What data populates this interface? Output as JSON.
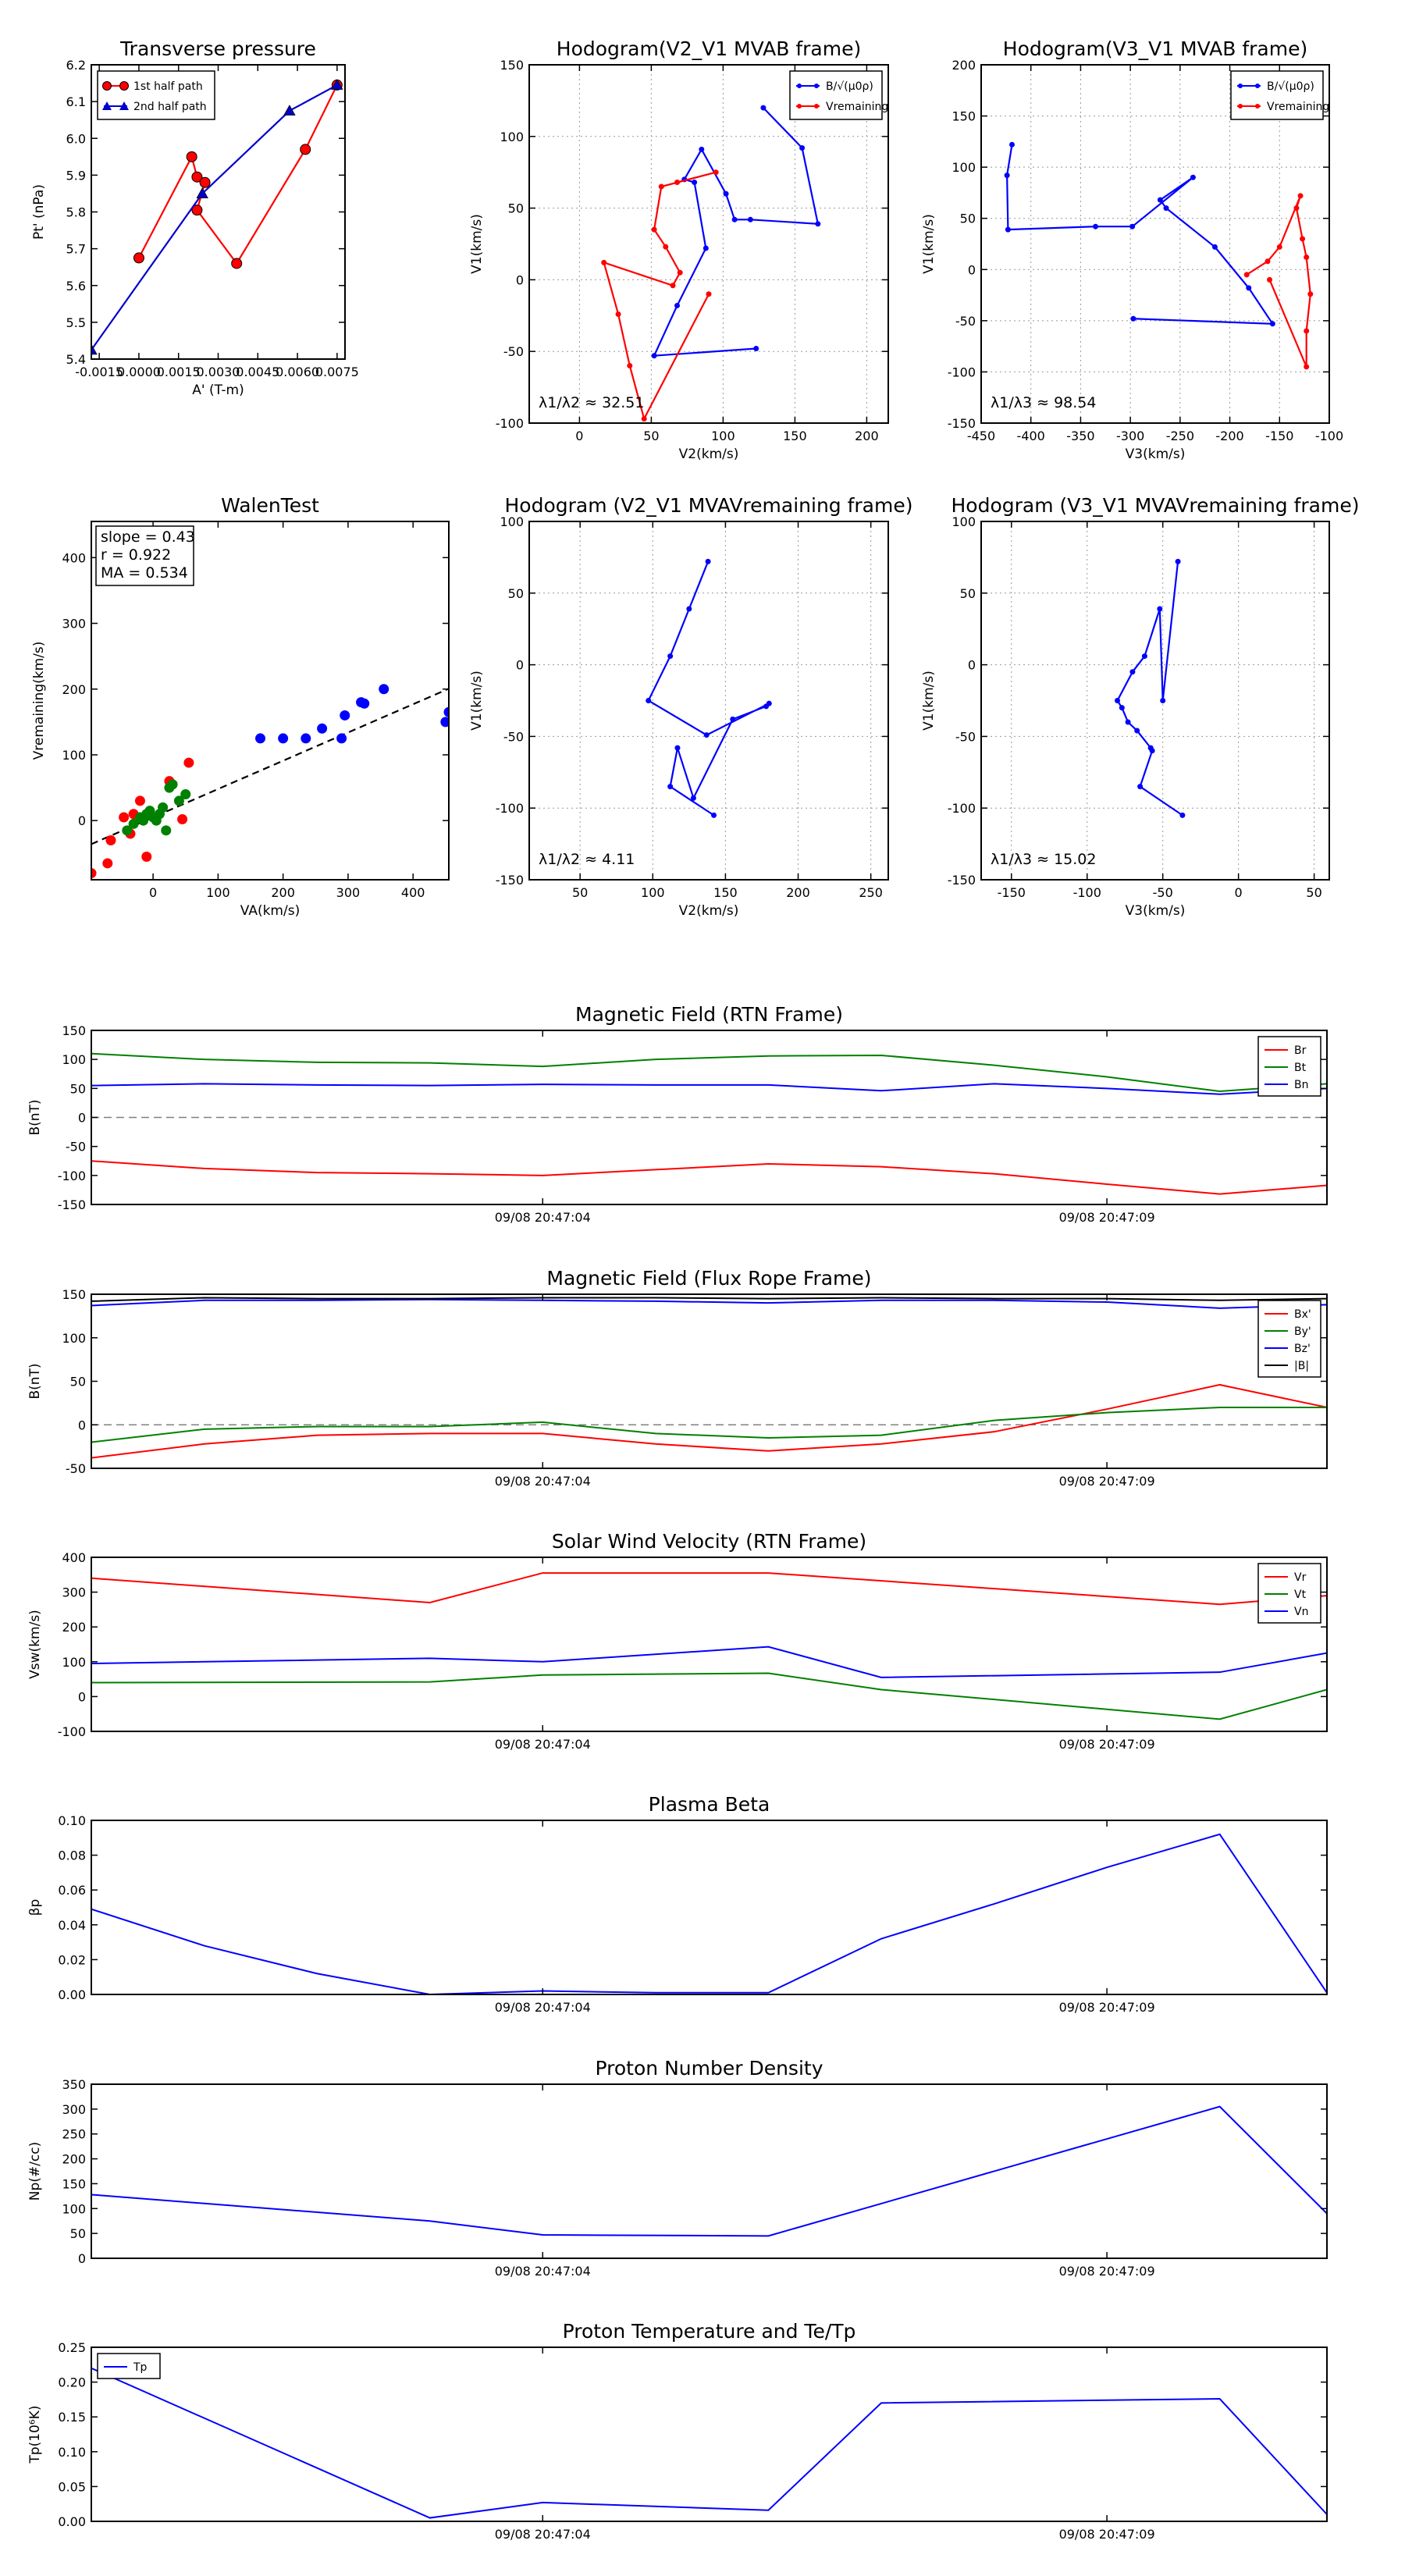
{
  "chart_data": [
    {
      "id": "tp",
      "type": "line",
      "title": "Transverse pressure",
      "xlabel": "A' (T-m)",
      "ylabel": "Pt' (nPa)",
      "xlim": [
        -0.0018,
        0.0078
      ],
      "ylim": [
        5.4,
        6.2
      ],
      "xticks": [
        -0.0015,
        0.0,
        0.0015,
        0.003,
        0.0045,
        0.006,
        0.0075
      ],
      "xtick_labels": [
        "-0.0015",
        "0.0000",
        "0.0015",
        "0.0030",
        "0.0045",
        "0.0060",
        "0.0075"
      ],
      "yticks": [
        5.4,
        5.5,
        5.6,
        5.7,
        5.8,
        5.9,
        6.0,
        6.1,
        6.2
      ],
      "ytick_labels": [
        "5.4",
        "5.5",
        "5.6",
        "5.7",
        "5.8",
        "5.9",
        "6.0",
        "6.1",
        "6.2"
      ],
      "legend_position": "top-left",
      "series": [
        {
          "name": "1st half path",
          "color": "#ff0000",
          "marker": "circle",
          "x": [
            0.0,
            0.002,
            0.0022,
            0.0025,
            0.0022,
            0.0037,
            0.0063,
            0.0075
          ],
          "y": [
            5.675,
            5.95,
            5.895,
            5.88,
            5.805,
            5.66,
            5.97,
            6.145
          ]
        },
        {
          "name": "2nd half path",
          "color": "#0000cc",
          "marker": "triangle",
          "x": [
            0.0075,
            0.0057,
            0.0024,
            -0.0018
          ],
          "y": [
            6.145,
            6.075,
            5.85,
            5.425
          ]
        }
      ]
    },
    {
      "id": "h1",
      "type": "line",
      "title": "Hodogram(V2_V1 MVAB frame)",
      "xlabel": "V2(km/s)",
      "ylabel": "V1(km/s)",
      "xlim": [
        -35,
        215
      ],
      "ylim": [
        -100,
        150
      ],
      "xticks": [
        0,
        50,
        100,
        150,
        200
      ],
      "yticks": [
        -100,
        -50,
        0,
        50,
        100,
        150
      ],
      "annotation": "λ1/λ2 ≈ 32.51",
      "legend_position": "top-right",
      "series": [
        {
          "name": "B/√(μ0ρ)",
          "color": "#0000ff",
          "x": [
            123,
            52,
            68,
            88,
            80,
            73,
            85,
            102,
            108,
            119,
            166,
            155,
            128
          ],
          "y": [
            -48,
            -53,
            -18,
            22,
            68,
            70,
            91,
            60,
            42,
            42,
            39,
            92,
            120
          ]
        },
        {
          "name": "Vremaining",
          "color": "#ff0000",
          "x": [
            90,
            45,
            35,
            27,
            17,
            65,
            70,
            60,
            52,
            57,
            95,
            68
          ],
          "y": [
            -10,
            -97,
            -60,
            -24,
            12,
            -4,
            5,
            23,
            35,
            65,
            75,
            68
          ]
        }
      ]
    },
    {
      "id": "h2",
      "type": "line",
      "title": "Hodogram(V3_V1 MVAB frame)",
      "xlabel": "V3(km/s)",
      "ylabel": "V1(km/s)",
      "xlim": [
        -450,
        -100
      ],
      "ylim": [
        -150,
        200
      ],
      "xticks": [
        -450,
        -400,
        -350,
        -300,
        -250,
        -200,
        -150,
        -100
      ],
      "yticks": [
        -150,
        -100,
        -50,
        0,
        50,
        100,
        150,
        200
      ],
      "annotation": "λ1/λ3 ≈ 98.54",
      "legend_position": "top-right",
      "series": [
        {
          "name": "B/√(μ0ρ)",
          "color": "#0000ff",
          "x": [
            -297,
            -157,
            -181,
            -215,
            -264,
            -270,
            -237,
            -298,
            -335,
            -423,
            -424,
            -419
          ],
          "y": [
            -48,
            -53,
            -18,
            22,
            60,
            68,
            90,
            42,
            42,
            39,
            92,
            122
          ]
        },
        {
          "name": "Vremaining",
          "color": "#ff0000",
          "x": [
            -160,
            -123,
            -123,
            -119,
            -123,
            -127,
            -133,
            -129,
            -150,
            -162,
            -183
          ],
          "y": [
            -10,
            -95,
            -60,
            -24,
            12,
            30,
            60,
            72,
            22,
            8,
            -5
          ]
        }
      ]
    },
    {
      "id": "walen",
      "type": "scatter",
      "title": "WalenTest",
      "xlabel": "VA(km/s)",
      "ylabel": "Vremaining(km/s)",
      "xlim": [
        -95,
        455
      ],
      "ylim": [
        -90,
        455
      ],
      "xticks": [
        0,
        100,
        200,
        300,
        400
      ],
      "yticks": [
        0,
        100,
        200,
        300,
        400
      ],
      "annotations": [
        "slope = 0.43",
        "r = 0.922",
        "MA = 0.534"
      ],
      "fit": {
        "slope": 0.43,
        "intercept": 5
      },
      "series": [
        {
          "color": "#ff0000",
          "x": [
            -95,
            -70,
            -65,
            -45,
            -35,
            -30,
            -20,
            -10,
            25,
            55,
            45
          ],
          "y": [
            -80,
            -65,
            -30,
            5,
            -20,
            10,
            30,
            -55,
            60,
            88,
            2
          ]
        },
        {
          "color": "#008000",
          "x": [
            -40,
            -30,
            -20,
            -15,
            -10,
            -5,
            0,
            5,
            10,
            15,
            20,
            25,
            30,
            40,
            50
          ],
          "y": [
            -15,
            -5,
            5,
            0,
            10,
            15,
            5,
            0,
            10,
            20,
            -15,
            50,
            55,
            30,
            40
          ]
        },
        {
          "color": "#0000ff",
          "x": [
            165,
            200,
            235,
            260,
            290,
            295,
            320,
            325,
            355,
            450,
            455
          ],
          "y": [
            125,
            125,
            125,
            140,
            125,
            160,
            180,
            178,
            200,
            150,
            165
          ]
        }
      ]
    },
    {
      "id": "h3",
      "type": "line",
      "title": "Hodogram (V2_V1 MVAVremaining frame)",
      "xlabel": "V2(km/s)",
      "ylabel": "V1(km/s)",
      "xlim": [
        15,
        262
      ],
      "ylim": [
        -150,
        100
      ],
      "xticks": [
        50,
        100,
        150,
        200,
        250
      ],
      "yticks": [
        -150,
        -100,
        -50,
        0,
        50,
        100
      ],
      "annotation": "λ1/λ2 ≈ 4.11",
      "series": [
        {
          "color": "#0000ff",
          "x": [
            142,
            112,
            117,
            128,
            155,
            178,
            180,
            137,
            97,
            112,
            125,
            138
          ],
          "y": [
            -105,
            -85,
            -58,
            -93,
            -38,
            -29,
            -27,
            -49,
            -25,
            6,
            39,
            72
          ]
        }
      ]
    },
    {
      "id": "h4",
      "type": "line",
      "title": "Hodogram (V3_V1 MVAVremaining frame)",
      "xlabel": "V3(km/s)",
      "ylabel": "V1(km/s)",
      "xlim": [
        -170,
        60
      ],
      "ylim": [
        -150,
        100
      ],
      "xticks": [
        -150,
        -100,
        -50,
        0,
        50
      ],
      "yticks": [
        -150,
        -100,
        -50,
        0,
        50,
        100
      ],
      "annotation": "λ1/λ3 ≈ 15.02",
      "series": [
        {
          "color": "#0000ff",
          "x": [
            -37,
            -65,
            -57,
            -58,
            -67,
            -73,
            -77,
            -80,
            -70,
            -62,
            -52,
            -50,
            -40
          ],
          "y": [
            -105,
            -85,
            -60,
            -58,
            -46,
            -40,
            -30,
            -25,
            -5,
            6,
            39,
            -25,
            72
          ]
        }
      ]
    },
    {
      "id": "ts1",
      "type": "line",
      "title": "Magnetic Field (RTN Frame)",
      "ylabel": "B(nT)",
      "xlim": [
        0,
        10.95
      ],
      "ylim": [
        -150,
        150
      ],
      "yticks": [
        -150,
        -100,
        -50,
        0,
        50,
        100,
        150
      ],
      "xticks": [
        4,
        9
      ],
      "xtick_labels": [
        "09/08 20:47:04",
        "09/08 20:47:09"
      ],
      "zero_line": true,
      "legend_position": "top-right",
      "series": [
        {
          "name": "Br",
          "color": "#ff0000",
          "x": [
            0,
            1,
            2,
            3,
            4,
            5,
            6,
            7,
            8,
            9,
            10,
            10.95
          ],
          "y": [
            -75,
            -88,
            -95,
            -97,
            -100,
            -90,
            -80,
            -85,
            -97,
            -115,
            -132,
            -117
          ]
        },
        {
          "name": "Bt",
          "color": "#008000",
          "x": [
            0,
            1,
            2,
            3,
            4,
            5,
            6,
            7,
            8,
            9,
            10,
            10.95
          ],
          "y": [
            110,
            100,
            95,
            94,
            88,
            100,
            106,
            107,
            90,
            70,
            45,
            58
          ]
        },
        {
          "name": "Bn",
          "color": "#0000ff",
          "x": [
            0,
            1,
            2,
            3,
            4,
            5,
            6,
            7,
            8,
            9,
            10,
            10.95
          ],
          "y": [
            55,
            58,
            56,
            55,
            57,
            56,
            56,
            46,
            58,
            50,
            40,
            50
          ]
        }
      ]
    },
    {
      "id": "ts2",
      "type": "line",
      "title": "Magnetic Field (Flux Rope Frame)",
      "ylabel": "B(nT)",
      "xlim": [
        0,
        10.95
      ],
      "ylim": [
        -50,
        150
      ],
      "yticks": [
        -50,
        0,
        50,
        100,
        150
      ],
      "xticks": [
        4,
        9
      ],
      "xtick_labels": [
        "09/08 20:47:04",
        "09/08 20:47:09"
      ],
      "zero_line": true,
      "legend_position": "top-right",
      "series": [
        {
          "name": "Bx'",
          "color": "#ff0000",
          "x": [
            0,
            1,
            2,
            3,
            4,
            5,
            6,
            7,
            8,
            9,
            10,
            10.95
          ],
          "y": [
            -38,
            -22,
            -12,
            -10,
            -10,
            -22,
            -30,
            -22,
            -8,
            18,
            46,
            20
          ]
        },
        {
          "name": "By'",
          "color": "#008000",
          "x": [
            0,
            1,
            2,
            3,
            4,
            5,
            6,
            7,
            8,
            9,
            10,
            10.95
          ],
          "y": [
            -20,
            -5,
            -2,
            -2,
            3,
            -10,
            -15,
            -12,
            5,
            14,
            20,
            20
          ]
        },
        {
          "name": "Bz'",
          "color": "#0000ff",
          "x": [
            0,
            1,
            2,
            3,
            4,
            5,
            6,
            7,
            8,
            9,
            10,
            10.95
          ],
          "y": [
            137,
            143,
            143,
            144,
            143,
            142,
            140,
            143,
            143,
            141,
            134,
            138
          ]
        },
        {
          "name": "|B|",
          "color": "#000000",
          "x": [
            0,
            1,
            2,
            3,
            4,
            5,
            6,
            7,
            8,
            9,
            10,
            10.95
          ],
          "y": [
            142,
            146,
            145,
            145,
            146,
            146,
            145,
            146,
            145,
            145,
            143,
            145
          ]
        }
      ]
    },
    {
      "id": "ts3",
      "type": "line",
      "title": "Solar Wind Velocity (RTN Frame)",
      "ylabel": "Vsw(km/s)",
      "xlim": [
        0,
        10.95
      ],
      "ylim": [
        -100,
        400
      ],
      "yticks": [
        -100,
        0,
        100,
        200,
        300,
        400
      ],
      "xticks": [
        4,
        9
      ],
      "xtick_labels": [
        "09/08 20:47:04",
        "09/08 20:47:09"
      ],
      "legend_position": "top-right",
      "series": [
        {
          "name": "Vr",
          "color": "#ff0000",
          "x": [
            0,
            3,
            4,
            6,
            10,
            10.95
          ],
          "y": [
            340,
            270,
            355,
            355,
            265,
            290
          ]
        },
        {
          "name": "Vt",
          "color": "#008000",
          "x": [
            0,
            3,
            4,
            6,
            7,
            10,
            10.95
          ],
          "y": [
            40,
            42,
            62,
            67,
            20,
            -65,
            20
          ]
        },
        {
          "name": "Vn",
          "color": "#0000ff",
          "x": [
            0,
            3,
            4,
            6,
            7,
            10,
            10.95
          ],
          "y": [
            95,
            110,
            100,
            143,
            55,
            70,
            125
          ]
        }
      ]
    },
    {
      "id": "ts4",
      "type": "line",
      "title": "Plasma Beta",
      "ylabel": "βp",
      "xlim": [
        0,
        10.95
      ],
      "ylim": [
        0,
        0.1
      ],
      "yticks": [
        0,
        0.02,
        0.04,
        0.06,
        0.08,
        0.1
      ],
      "ytick_labels": [
        "0.00",
        "0.02",
        "0.04",
        "0.06",
        "0.08",
        "0.10"
      ],
      "xticks": [
        4,
        9
      ],
      "xtick_labels": [
        "09/08 20:47:04",
        "09/08 20:47:09"
      ],
      "series": [
        {
          "color": "#0000ff",
          "x": [
            0,
            1,
            2,
            3,
            4,
            5,
            6,
            7,
            8,
            9,
            10,
            10.95
          ],
          "y": [
            0.049,
            0.028,
            0.012,
            0.0,
            0.002,
            0.001,
            0.001,
            0.032,
            0.052,
            0.073,
            0.092,
            0.001
          ]
        }
      ]
    },
    {
      "id": "ts5",
      "type": "line",
      "title": "Proton Number Density",
      "ylabel": "Np(#/cc)",
      "xlim": [
        0,
        10.95
      ],
      "ylim": [
        0,
        350
      ],
      "yticks": [
        0,
        50,
        100,
        150,
        200,
        250,
        300,
        350
      ],
      "xticks": [
        4,
        9
      ],
      "xtick_labels": [
        "09/08 20:47:04",
        "09/08 20:47:09"
      ],
      "series": [
        {
          "color": "#0000ff",
          "x": [
            0,
            3,
            4,
            6,
            10,
            10.95
          ],
          "y": [
            128,
            75,
            47,
            45,
            305,
            90
          ]
        }
      ]
    },
    {
      "id": "ts6",
      "type": "line",
      "title": "Proton Temperature and Te/Tp",
      "ylabel": "Tp(10⁶K)",
      "xlim": [
        0,
        10.95
      ],
      "ylim": [
        0,
        0.25
      ],
      "yticks": [
        0,
        0.05,
        0.1,
        0.15,
        0.2,
        0.25
      ],
      "ytick_labels": [
        "0.00",
        "0.05",
        "0.10",
        "0.15",
        "0.20",
        "0.25"
      ],
      "xticks": [
        4,
        9
      ],
      "xtick_labels": [
        "09/08 20:47:04",
        "09/08 20:47:09"
      ],
      "legend_position": "top-left",
      "series": [
        {
          "name": "Tp",
          "color": "#0000ff",
          "x": [
            0,
            3,
            4,
            6,
            7,
            10,
            10.95
          ],
          "y": [
            0.22,
            0.005,
            0.027,
            0.016,
            0.17,
            0.176,
            0.01
          ]
        }
      ]
    }
  ]
}
